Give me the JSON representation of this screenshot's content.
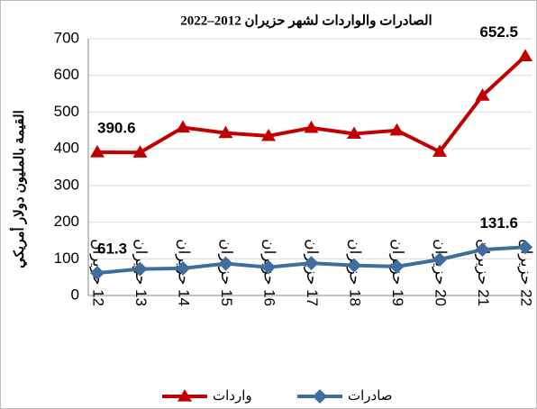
{
  "chart_data": {
    "type": "line",
    "title": "الصادرات والواردات لشهر حزيران 2012–2022",
    "y_label": "القيمة بالمليون دولار أمريكي",
    "categories": [
      "12 حزيران",
      "13 حزيران",
      "14 حزيران",
      "15 حزيران",
      "16 حزيران",
      "17 حزيران",
      "18 حزيران",
      "19 حزيران",
      "20 حزيران",
      "21 حزيران",
      "22 حزيران"
    ],
    "series": [
      {
        "name": "واردات",
        "color": "#c00000",
        "marker": "triangle",
        "values": [
          390.6,
          390,
          458,
          443,
          435,
          457,
          441,
          450,
          392,
          545,
          652.5
        ],
        "labeled": [
          0,
          10
        ]
      },
      {
        "name": "صادرات",
        "color": "#3f6d9e",
        "marker": "diamond",
        "values": [
          61.3,
          72,
          74,
          87,
          77,
          88,
          82,
          79,
          98,
          125,
          131.6
        ],
        "labeled": [
          0,
          10
        ]
      }
    ],
    "ylim": [
      0,
      700
    ],
    "yticks": [
      0,
      100,
      200,
      300,
      400,
      500,
      600,
      700
    ],
    "grid": true
  }
}
